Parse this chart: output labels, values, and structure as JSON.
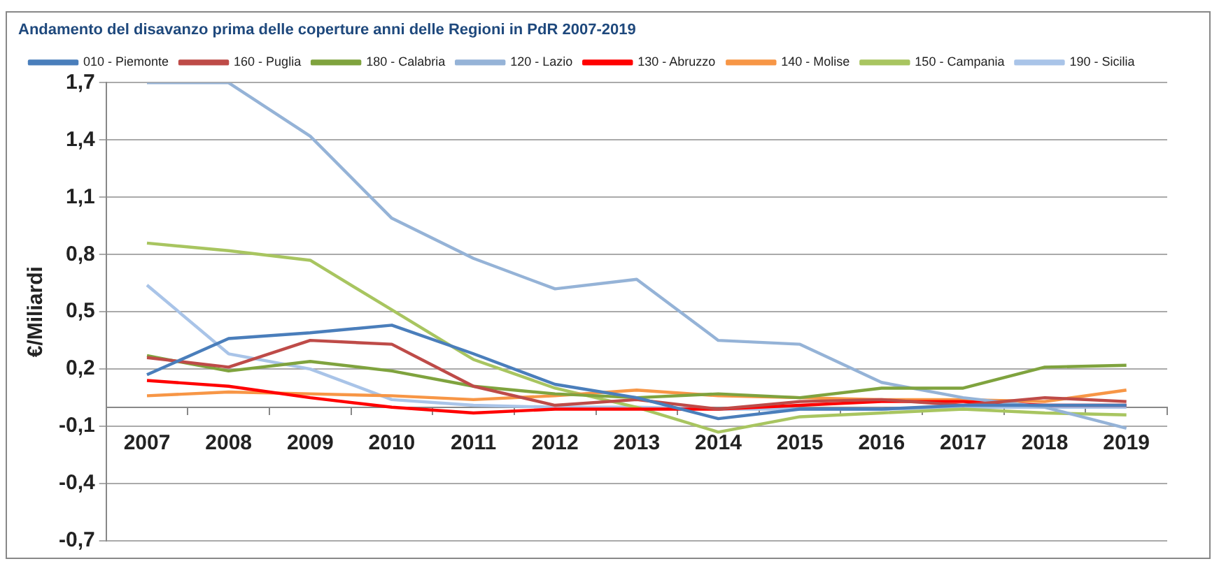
{
  "chart_data": {
    "type": "line",
    "title": "Andamento del disavanzo prima delle coperture anni delle Regioni in PdR 2007-2019",
    "ylabel": "€/Miliardi",
    "categories": [
      "2007",
      "2008",
      "2009",
      "2010",
      "2011",
      "2012",
      "2013",
      "2014",
      "2015",
      "2016",
      "2017",
      "2018",
      "2019"
    ],
    "series": [
      {
        "name": "010 - Piemonte",
        "color": "#4a7ebb",
        "values": [
          0.17,
          0.36,
          0.39,
          0.43,
          0.28,
          0.12,
          0.05,
          -0.06,
          -0.01,
          -0.01,
          0.01,
          0.01,
          0.01
        ]
      },
      {
        "name": "160 - Puglia",
        "color": "#be4b48",
        "values": [
          0.26,
          0.21,
          0.35,
          0.33,
          0.11,
          0.01,
          0.04,
          -0.01,
          0.03,
          0.04,
          0.01,
          0.05,
          0.03
        ]
      },
      {
        "name": "180 - Calabria",
        "color": "#7fa33e",
        "values": [
          0.27,
          0.19,
          0.24,
          0.19,
          0.11,
          0.07,
          0.05,
          0.07,
          0.05,
          0.1,
          0.1,
          0.21,
          0.22
        ]
      },
      {
        "name": "120 - Lazio",
        "color": "#95b3d7",
        "values": [
          1.7,
          1.7,
          1.42,
          0.99,
          0.78,
          0.62,
          0.67,
          0.35,
          0.33,
          0.13,
          0.05,
          0.0,
          -0.11
        ]
      },
      {
        "name": "130 - Abruzzo",
        "color": "#ff0000",
        "values": [
          0.14,
          0.11,
          0.05,
          0.0,
          -0.03,
          -0.01,
          -0.01,
          -0.01,
          0.01,
          0.03,
          0.03,
          0.01,
          0.01
        ]
      },
      {
        "name": "140 - Molise",
        "color": "#f79646",
        "values": [
          0.06,
          0.08,
          0.07,
          0.06,
          0.04,
          0.06,
          0.09,
          0.06,
          0.05,
          0.04,
          0.04,
          0.03,
          0.09
        ]
      },
      {
        "name": "150 - Campania",
        "color": "#a8c560",
        "values": [
          0.86,
          0.82,
          0.77,
          0.51,
          0.25,
          0.1,
          0.0,
          -0.13,
          -0.05,
          -0.03,
          -0.01,
          -0.03,
          -0.04
        ]
      },
      {
        "name": "190 - Sicilia",
        "color": "#a9c4e8",
        "values": [
          0.64,
          0.28,
          0.2,
          0.04,
          0.01,
          0.0,
          0.0,
          -0.01,
          -0.01,
          -0.01,
          0.0,
          0.0,
          0.0
        ]
      }
    ],
    "ylim": [
      -0.7,
      1.7
    ],
    "yticks": [
      {
        "value": 1.7,
        "label": "1,7"
      },
      {
        "value": 1.4,
        "label": "1,4"
      },
      {
        "value": 1.1,
        "label": "1,1"
      },
      {
        "value": 0.8,
        "label": "0,8"
      },
      {
        "value": 0.5,
        "label": "0,5"
      },
      {
        "value": 0.2,
        "label": "0,2"
      },
      {
        "value": -0.1,
        "label": "-0,1"
      },
      {
        "value": -0.4,
        "label": "-0,4"
      },
      {
        "value": -0.7,
        "label": "-0,7"
      }
    ],
    "grid": "y",
    "legend": "top",
    "marker": "none",
    "line_style": "solid"
  }
}
